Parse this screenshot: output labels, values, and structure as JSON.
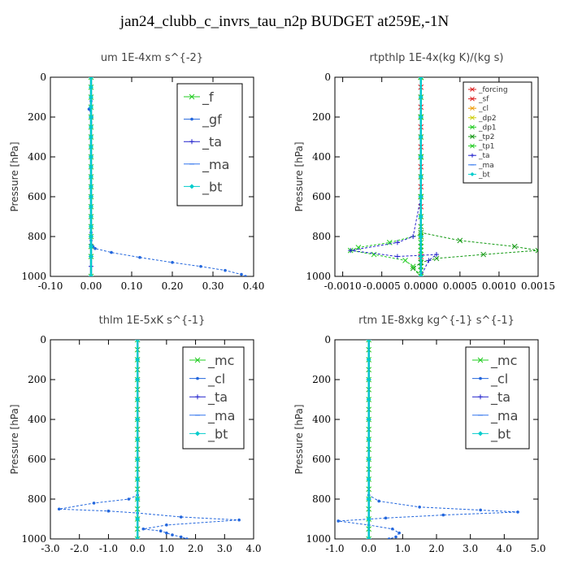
{
  "title": "jan24_clubb_c_invrs_tau_n2p  BUDGET at259E,-1N",
  "colors": {
    "green": "#22cc22",
    "blue": "#2266dd",
    "cyan": "#00cccc",
    "red": "#dd2222",
    "orange": "#ee9900",
    "dkgreen": "#119911",
    "navy": "#2222cc"
  },
  "chart_data": [
    {
      "type": "line",
      "title": "um  1E-4xm s^{-2}",
      "ylabel": "Pressure [hPa]",
      "xlim": [
        -0.1,
        0.4
      ],
      "ylim": [
        1000,
        0
      ],
      "xticks": [
        "-0.10",
        "0.00",
        "0.10",
        "0.20",
        "0.30",
        "0.40"
      ],
      "xtick_values": [
        -0.1,
        0.0,
        0.1,
        0.2,
        0.3,
        0.4
      ],
      "yticks": [
        "0",
        "200",
        "400",
        "600",
        "800",
        "1000"
      ],
      "ytick_values": [
        0,
        200,
        400,
        600,
        800,
        1000
      ],
      "legend_size": "big",
      "legend_position": "top-right",
      "series": [
        {
          "name": "_f",
          "color": "#22cc22",
          "marker": "x",
          "x": [
            0,
            0,
            0,
            0,
            0,
            0,
            0,
            0,
            0,
            0,
            0,
            0,
            0,
            0,
            0,
            0,
            0,
            0,
            0,
            0
          ],
          "y": [
            0,
            50,
            100,
            150,
            200,
            250,
            300,
            350,
            400,
            450,
            500,
            550,
            600,
            650,
            700,
            750,
            800,
            850,
            900,
            1000
          ]
        },
        {
          "name": "_gf",
          "color": "#2266dd",
          "marker": "dot",
          "x": [
            0.0,
            0.0,
            0.0,
            -0.005,
            0.002,
            0.0,
            0.0,
            0.0,
            0.0,
            0.0,
            0.0,
            0.0,
            0.0,
            0.005,
            0.01,
            0.05,
            0.12,
            0.2,
            0.27,
            0.33,
            0.37,
            0.38
          ],
          "y": [
            0,
            50,
            120,
            160,
            200,
            300,
            400,
            500,
            600,
            700,
            780,
            820,
            840,
            850,
            860,
            880,
            905,
            930,
            950,
            970,
            990,
            1000
          ]
        },
        {
          "name": "_ta",
          "color": "#2222cc",
          "marker": "plus",
          "x": [
            0,
            0,
            0,
            0,
            0,
            0,
            0,
            0
          ],
          "y": [
            0,
            200,
            400,
            600,
            800,
            900,
            950,
            1000
          ]
        },
        {
          "name": "_ma",
          "color": "#3377ee",
          "marker": "dash",
          "x": [
            0,
            0,
            0,
            0,
            0,
            0
          ],
          "y": [
            0,
            200,
            400,
            600,
            800,
            1000
          ]
        },
        {
          "name": "_bt",
          "color": "#00cccc",
          "marker": "diamond",
          "x": [
            0,
            0,
            0,
            0,
            0,
            0,
            0,
            0,
            0,
            0,
            0,
            0,
            0,
            0,
            0,
            0,
            0,
            0,
            0,
            0
          ],
          "y": [
            0,
            50,
            100,
            150,
            200,
            250,
            300,
            350,
            400,
            450,
            500,
            550,
            600,
            650,
            700,
            750,
            800,
            850,
            900,
            1000
          ]
        }
      ]
    },
    {
      "type": "line",
      "title": "rtpthlp  1E-4x(kg K)/(kg s)",
      "ylabel": "Pressure [hPa]",
      "xlim": [
        -0.0011,
        0.0015
      ],
      "ylim": [
        1000,
        0
      ],
      "xticks": [
        "-0.0010",
        "-0.0005",
        "0.0000",
        "0.0005",
        "0.0010",
        "0.0015"
      ],
      "xtick_values": [
        -0.001,
        -0.0005,
        0.0,
        0.0005,
        0.001,
        0.0015
      ],
      "yticks": [
        "0",
        "200",
        "400",
        "600",
        "800",
        "1000"
      ],
      "ytick_values": [
        0,
        200,
        400,
        600,
        800,
        1000
      ],
      "legend_size": "small",
      "legend_position": "top-right",
      "series": [
        {
          "name": "_forcing",
          "color": "#dd2222",
          "marker": "x",
          "x": [
            0,
            0,
            0,
            0,
            0,
            0,
            0,
            0,
            0,
            0,
            0,
            0,
            0,
            0,
            0,
            0,
            0,
            0,
            0,
            0,
            0
          ],
          "y": [
            0,
            50,
            100,
            150,
            200,
            250,
            300,
            350,
            400,
            450,
            500,
            550,
            600,
            650,
            700,
            750,
            800,
            850,
            900,
            950,
            1000
          ]
        },
        {
          "name": "_sf",
          "color": "#dd2222",
          "marker": "x",
          "x": [
            0,
            0,
            0,
            0,
            0,
            0
          ],
          "y": [
            0,
            200,
            400,
            600,
            800,
            1000
          ]
        },
        {
          "name": "_cl",
          "color": "#ee9900",
          "marker": "x",
          "x": [
            0,
            0,
            0,
            0,
            0,
            0
          ],
          "y": [
            0,
            200,
            400,
            600,
            800,
            1000
          ]
        },
        {
          "name": "_dp2",
          "color": "#cccc00",
          "marker": "x",
          "x": [
            0,
            0,
            0,
            0,
            0,
            0
          ],
          "y": [
            0,
            200,
            400,
            600,
            800,
            1000
          ]
        },
        {
          "name": "_dp1",
          "color": "#22cc22",
          "marker": "x",
          "x": [
            0,
            0,
            0,
            0,
            0,
            0,
            0,
            0,
            0,
            0,
            0,
            0,
            0,
            0,
            0,
            0,
            0,
            0,
            0
          ],
          "y": [
            0,
            100,
            200,
            300,
            400,
            500,
            600,
            700,
            750,
            800,
            830,
            850,
            870,
            890,
            910,
            930,
            950,
            970,
            1000
          ]
        },
        {
          "name": "_tp2",
          "color": "#119911",
          "marker": "x",
          "x": [
            0,
            0,
            0,
            0,
            0.0,
            0.0005,
            0.0012,
            0.0015,
            0.0008,
            0.0002,
            0.0,
            -0.0001,
            0.0
          ],
          "y": [
            0,
            200,
            400,
            600,
            780,
            820,
            850,
            870,
            890,
            910,
            930,
            960,
            1000
          ]
        },
        {
          "name": "_tp1",
          "color": "#22cc22",
          "marker": "x",
          "x": [
            0,
            0,
            0,
            0,
            0.0,
            -0.0004,
            -0.0008,
            -0.0009,
            -0.0006,
            -0.0002,
            -0.0001,
            0.0
          ],
          "y": [
            0,
            200,
            400,
            600,
            790,
            830,
            855,
            870,
            890,
            920,
            950,
            1000
          ]
        },
        {
          "name": "_ta",
          "color": "#2222cc",
          "marker": "plus",
          "x": [
            0,
            0,
            0,
            0,
            -0.0001,
            -0.0003,
            -0.0009,
            -0.0003,
            0.0002,
            0.0001,
            0.0
          ],
          "y": [
            0,
            200,
            400,
            600,
            800,
            830,
            870,
            900,
            890,
            920,
            1000
          ]
        },
        {
          "name": "_ma",
          "color": "#3377ee",
          "marker": "dash",
          "x": [
            0,
            0,
            0,
            0,
            0,
            0
          ],
          "y": [
            0,
            200,
            400,
            600,
            800,
            1000
          ]
        },
        {
          "name": "_bt",
          "color": "#00cccc",
          "marker": "diamond",
          "x": [
            0,
            0,
            0,
            0,
            0,
            0,
            0,
            0,
            0,
            0,
            0
          ],
          "y": [
            0,
            100,
            200,
            300,
            400,
            500,
            600,
            700,
            800,
            900,
            1000
          ]
        }
      ]
    },
    {
      "type": "line",
      "title": "thlm  1E-5xK s^{-1}",
      "ylabel": "Pressure [hPa]",
      "xlim": [
        -3.0,
        4.0
      ],
      "ylim": [
        1000,
        0
      ],
      "xticks": [
        "-3.0",
        "-2.0",
        "-1.0",
        "0.0",
        "1.0",
        "2.0",
        "3.0",
        "4.0"
      ],
      "xtick_values": [
        -3,
        -2,
        -1,
        0,
        1,
        2,
        3,
        4
      ],
      "yticks": [
        "0",
        "200",
        "400",
        "600",
        "800",
        "1000"
      ],
      "ytick_values": [
        0,
        200,
        400,
        600,
        800,
        1000
      ],
      "legend_size": "big",
      "legend_position": "top-right",
      "series": [
        {
          "name": "_mc",
          "color": "#22cc22",
          "marker": "x",
          "x": [
            0,
            0,
            0,
            0,
            0,
            0,
            0,
            0,
            0,
            0,
            0,
            0,
            0,
            0,
            0,
            0,
            0,
            0,
            0,
            0,
            0
          ],
          "y": [
            0,
            50,
            100,
            150,
            200,
            250,
            300,
            350,
            400,
            450,
            500,
            550,
            600,
            650,
            700,
            750,
            800,
            850,
            900,
            950,
            1000
          ]
        },
        {
          "name": "_cl",
          "color": "#2266dd",
          "marker": "dot",
          "x": [
            0,
            0,
            0,
            0,
            0,
            0,
            -0.3,
            -1.5,
            -2.7,
            -1.0,
            0.0,
            1.5,
            3.5,
            1.0,
            0.2,
            0.8,
            1.0,
            1.2,
            1.5,
            1.7
          ],
          "y": [
            0,
            200,
            400,
            600,
            700,
            780,
            800,
            820,
            850,
            860,
            870,
            890,
            905,
            930,
            950,
            960,
            970,
            980,
            990,
            1000
          ]
        },
        {
          "name": "_ta",
          "color": "#2222cc",
          "marker": "plus",
          "x": [
            0,
            0,
            0,
            0,
            0,
            0
          ],
          "y": [
            0,
            200,
            400,
            600,
            800,
            1000
          ]
        },
        {
          "name": "_ma",
          "color": "#3377ee",
          "marker": "dash",
          "x": [
            0,
            0,
            0,
            0,
            0,
            0
          ],
          "y": [
            0,
            200,
            400,
            600,
            800,
            1000
          ]
        },
        {
          "name": "_bt",
          "color": "#00cccc",
          "marker": "diamond",
          "x": [
            0,
            0,
            0,
            0,
            0,
            0,
            0,
            0,
            0,
            0,
            0
          ],
          "y": [
            0,
            100,
            200,
            300,
            400,
            500,
            600,
            700,
            800,
            900,
            1000
          ]
        }
      ]
    },
    {
      "type": "line",
      "title": "rtm  1E-8xkg kg^{-1} s^{-1}",
      "ylabel": "Pressure [hPa]",
      "xlim": [
        -1.0,
        5.0
      ],
      "ylim": [
        1000,
        0
      ],
      "xticks": [
        "-1.0",
        "0.0",
        "1.0",
        "2.0",
        "3.0",
        "4.0",
        "5.0"
      ],
      "xtick_values": [
        -1,
        0,
        1,
        2,
        3,
        4,
        5
      ],
      "yticks": [
        "0",
        "200",
        "400",
        "600",
        "800",
        "1000"
      ],
      "ytick_values": [
        0,
        200,
        400,
        600,
        800,
        1000
      ],
      "legend_size": "big",
      "legend_position": "top-right",
      "series": [
        {
          "name": "_mc",
          "color": "#22cc22",
          "marker": "x",
          "x": [
            0,
            0,
            0,
            0,
            0,
            0,
            0,
            0,
            0,
            0,
            0,
            0,
            0,
            0,
            0,
            0,
            0,
            0,
            0,
            0,
            0
          ],
          "y": [
            0,
            50,
            100,
            150,
            200,
            250,
            300,
            350,
            400,
            450,
            500,
            550,
            600,
            650,
            700,
            750,
            800,
            850,
            900,
            950,
            1000
          ]
        },
        {
          "name": "_cl",
          "color": "#2266dd",
          "marker": "dot",
          "x": [
            0,
            0,
            0,
            0,
            0,
            0,
            0.3,
            1.5,
            3.3,
            4.4,
            2.2,
            0.5,
            -0.9,
            0.0,
            0.7,
            0.9,
            0.8,
            0.6
          ],
          "y": [
            0,
            200,
            400,
            600,
            700,
            780,
            810,
            840,
            855,
            865,
            880,
            895,
            910,
            930,
            950,
            970,
            990,
            1000
          ]
        },
        {
          "name": "_ta",
          "color": "#2222cc",
          "marker": "plus",
          "x": [
            0,
            0,
            0,
            0,
            0,
            0
          ],
          "y": [
            0,
            200,
            400,
            600,
            800,
            1000
          ]
        },
        {
          "name": "_ma",
          "color": "#3377ee",
          "marker": "dash",
          "x": [
            0,
            0,
            0,
            0,
            0,
            0
          ],
          "y": [
            0,
            200,
            400,
            600,
            800,
            1000
          ]
        },
        {
          "name": "_bt",
          "color": "#00cccc",
          "marker": "diamond",
          "x": [
            0,
            0,
            0,
            0,
            0,
            0,
            0,
            0,
            0,
            0,
            0
          ],
          "y": [
            0,
            100,
            200,
            300,
            400,
            500,
            600,
            700,
            800,
            900,
            1000
          ]
        }
      ]
    }
  ]
}
